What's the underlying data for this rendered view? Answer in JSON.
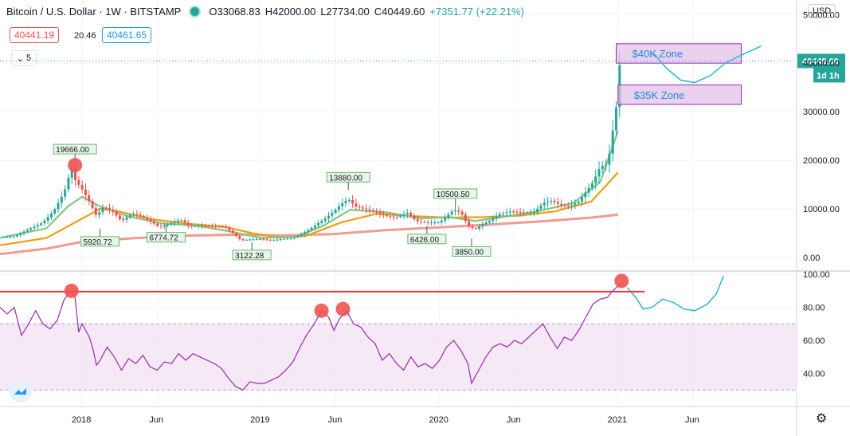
{
  "header": {
    "symbol": "Bitcoin / U.S. Dollar · 1W · BITSTAMP",
    "open": "O33068.83",
    "high": "H42000.00",
    "low": "L27734.00",
    "close": "C40449.60",
    "change": "+7351.77 (+22.21%)",
    "bid": "40441.19",
    "spread": "20.46",
    "ask": "40461.65",
    "indicator_count": "5",
    "currency": "USD"
  },
  "colors": {
    "up": "#26a69a",
    "down": "#ef5350",
    "ema_fast": "#81c784",
    "ema_mid": "#f39c12",
    "ma_slow": "#ef8a80",
    "rsi": "#9c27b0",
    "zone_fill": "#e1bee7",
    "zone_border": "#9c27b0",
    "projection": "#29b6d6",
    "rsi_threshold": "#e53935"
  },
  "chart_data": [
    {
      "type": "line",
      "title": "",
      "series_note": "price panel",
      "y_ticks": [
        "50000.00",
        "40000.00",
        "30000.00",
        "20000.00",
        "10000.00",
        "0.00"
      ],
      "ylim": [
        -2800,
        53000
      ],
      "x_ticks": [
        {
          "label": "2018",
          "x": 2018.0
        },
        {
          "label": "Jun",
          "x": 2018.42
        },
        {
          "label": "2019",
          "x": 2019.0
        },
        {
          "label": "Jun",
          "x": 2019.42
        },
        {
          "label": "2020",
          "x": 2020.0
        },
        {
          "label": "Jun",
          "x": 2020.42
        },
        {
          "label": "2021",
          "x": 2021.0
        },
        {
          "label": "Jun",
          "x": 2021.42
        }
      ],
      "xlim": [
        2017.54,
        2022.0
      ],
      "price_path": [
        [
          2017.54,
          4200
        ],
        [
          2017.62,
          4300
        ],
        [
          2017.7,
          5800
        ],
        [
          2017.78,
          7200
        ],
        [
          2017.84,
          9500
        ],
        [
          2017.9,
          13500
        ],
        [
          2017.94,
          18500
        ],
        [
          2017.96,
          16000
        ],
        [
          2018.0,
          14000
        ],
        [
          2018.04,
          11500
        ],
        [
          2018.08,
          8500
        ],
        [
          2018.12,
          10500
        ],
        [
          2018.17,
          9500
        ],
        [
          2018.22,
          7500
        ],
        [
          2018.28,
          9000
        ],
        [
          2018.33,
          8500
        ],
        [
          2018.38,
          7500
        ],
        [
          2018.43,
          6300
        ],
        [
          2018.48,
          6800
        ],
        [
          2018.55,
          7800
        ],
        [
          2018.6,
          6400
        ],
        [
          2018.67,
          6500
        ],
        [
          2018.74,
          6400
        ],
        [
          2018.8,
          6300
        ],
        [
          2018.85,
          4800
        ],
        [
          2018.89,
          3500
        ],
        [
          2018.94,
          3700
        ],
        [
          2019.0,
          3800
        ],
        [
          2019.06,
          3500
        ],
        [
          2019.12,
          3800
        ],
        [
          2019.18,
          4000
        ],
        [
          2019.24,
          5000
        ],
        [
          2019.3,
          6500
        ],
        [
          2019.36,
          8000
        ],
        [
          2019.41,
          9500
        ],
        [
          2019.45,
          11000
        ],
        [
          2019.49,
          12000
        ],
        [
          2019.53,
          10500
        ],
        [
          2019.58,
          10000
        ],
        [
          2019.63,
          9500
        ],
        [
          2019.7,
          8500
        ],
        [
          2019.76,
          8300
        ],
        [
          2019.82,
          9200
        ],
        [
          2019.87,
          7500
        ],
        [
          2019.93,
          7200
        ],
        [
          2020.0,
          7200
        ],
        [
          2020.04,
          8500
        ],
        [
          2020.08,
          9800
        ],
        [
          2020.12,
          9300
        ],
        [
          2020.16,
          6500
        ],
        [
          2020.2,
          5800
        ],
        [
          2020.24,
          6800
        ],
        [
          2020.28,
          7500
        ],
        [
          2020.33,
          8800
        ],
        [
          2020.4,
          9500
        ],
        [
          2020.47,
          9200
        ],
        [
          2020.53,
          9300
        ],
        [
          2020.58,
          11200
        ],
        [
          2020.63,
          11700
        ],
        [
          2020.68,
          10700
        ],
        [
          2020.73,
          10600
        ],
        [
          2020.78,
          11500
        ],
        [
          2020.82,
          13500
        ],
        [
          2020.86,
          15500
        ],
        [
          2020.9,
          18700
        ],
        [
          2020.94,
          19200
        ],
        [
          2020.96,
          23000
        ],
        [
          2020.98,
          29000
        ],
        [
          2021.0,
          33000
        ],
        [
          2021.01,
          40449
        ]
      ],
      "ema_fast_path": [
        [
          2017.54,
          4000
        ],
        [
          2017.8,
          6000
        ],
        [
          2017.92,
          10500
        ],
        [
          2018.0,
          12500
        ],
        [
          2018.1,
          10500
        ],
        [
          2018.25,
          8500
        ],
        [
          2018.45,
          7000
        ],
        [
          2018.65,
          6500
        ],
        [
          2018.85,
          5200
        ],
        [
          2019.0,
          4000
        ],
        [
          2019.2,
          4300
        ],
        [
          2019.35,
          6500
        ],
        [
          2019.5,
          9800
        ],
        [
          2019.7,
          9300
        ],
        [
          2019.9,
          8000
        ],
        [
          2020.05,
          8300
        ],
        [
          2020.2,
          7500
        ],
        [
          2020.35,
          8300
        ],
        [
          2020.55,
          9500
        ],
        [
          2020.75,
          11200
        ],
        [
          2020.9,
          15500
        ],
        [
          2021.0,
          26000
        ]
      ],
      "ema_mid_path": [
        [
          2017.54,
          2500
        ],
        [
          2017.8,
          4000
        ],
        [
          2017.95,
          7000
        ],
        [
          2018.1,
          10000
        ],
        [
          2018.2,
          9500
        ],
        [
          2018.4,
          7800
        ],
        [
          2018.6,
          6900
        ],
        [
          2018.8,
          6300
        ],
        [
          2018.95,
          5000
        ],
        [
          2019.1,
          4100
        ],
        [
          2019.25,
          4400
        ],
        [
          2019.45,
          7200
        ],
        [
          2019.65,
          9000
        ],
        [
          2019.85,
          8500
        ],
        [
          2020.05,
          8200
        ],
        [
          2020.25,
          8300
        ],
        [
          2020.45,
          8600
        ],
        [
          2020.65,
          9500
        ],
        [
          2020.85,
          11500
        ],
        [
          2021.0,
          17500
        ]
      ],
      "ma_slow_path": [
        [
          2017.54,
          700
        ],
        [
          2017.8,
          1800
        ],
        [
          2018.0,
          3200
        ],
        [
          2018.3,
          4000
        ],
        [
          2018.6,
          4500
        ],
        [
          2018.9,
          4700
        ],
        [
          2019.1,
          4500
        ],
        [
          2019.4,
          4800
        ],
        [
          2019.7,
          5600
        ],
        [
          2020.0,
          6200
        ],
        [
          2020.3,
          6800
        ],
        [
          2020.6,
          7500
        ],
        [
          2020.85,
          8200
        ],
        [
          2021.0,
          8800
        ]
      ],
      "zones": [
        {
          "label": "$40K Zone",
          "x0": 2020.99,
          "x1": 2021.69,
          "y0": 40000,
          "y1": 44000
        },
        {
          "label": "$35K Zone",
          "x0": 2021.0,
          "x1": 2021.69,
          "y0": 31500,
          "y1": 35500
        }
      ],
      "projection_path": [
        [
          2021.2,
          42000
        ],
        [
          2021.27,
          39000
        ],
        [
          2021.35,
          36500
        ],
        [
          2021.43,
          36000
        ],
        [
          2021.52,
          37500
        ],
        [
          2021.6,
          40000
        ],
        [
          2021.7,
          41800
        ],
        [
          2021.8,
          43500
        ]
      ],
      "current_price": {
        "label": "40449.60",
        "value": 40449.6,
        "timer": "1d 1h"
      },
      "callouts": [
        {
          "label": "19666.00",
          "x": 2017.96,
          "y": 19666,
          "kind": "high"
        },
        {
          "label": "5920.72",
          "x": 2018.1,
          "y": 5920,
          "kind": "low"
        },
        {
          "label": "6774.72",
          "x": 2018.47,
          "y": 6774,
          "kind": "low"
        },
        {
          "label": "3122.28",
          "x": 2018.95,
          "y": 3122,
          "kind": "low"
        },
        {
          "label": "13880.00",
          "x": 2019.49,
          "y": 13880,
          "kind": "high"
        },
        {
          "label": "6426.00",
          "x": 2019.93,
          "y": 6426,
          "kind": "low"
        },
        {
          "label": "10500.50",
          "x": 2020.09,
          "y": 10500,
          "kind": "high"
        },
        {
          "label": "3850.00",
          "x": 2020.18,
          "y": 3850,
          "kind": "low"
        }
      ],
      "high_markers": [
        {
          "x": 2017.96,
          "y": 19000
        }
      ]
    },
    {
      "type": "line",
      "title": "",
      "series_note": "RSI panel",
      "y_ticks": [
        "100.00",
        "80.00",
        "60.00",
        "40.00"
      ],
      "ylim": [
        20,
        102
      ],
      "band": [
        30,
        70
      ],
      "threshold": 89.5,
      "rsi_path": [
        [
          2017.54,
          80
        ],
        [
          2017.58,
          76
        ],
        [
          2017.62,
          80
        ],
        [
          2017.66,
          63
        ],
        [
          2017.7,
          70
        ],
        [
          2017.74,
          78
        ],
        [
          2017.78,
          70
        ],
        [
          2017.82,
          67
        ],
        [
          2017.86,
          72
        ],
        [
          2017.9,
          85
        ],
        [
          2017.94,
          90
        ],
        [
          2017.96,
          86
        ],
        [
          2017.98,
          65
        ],
        [
          2018.0,
          70
        ],
        [
          2018.02,
          66
        ],
        [
          2018.04,
          62
        ],
        [
          2018.06,
          55
        ],
        [
          2018.08,
          45
        ],
        [
          2018.1,
          48
        ],
        [
          2018.14,
          56
        ],
        [
          2018.18,
          50
        ],
        [
          2018.22,
          42
        ],
        [
          2018.26,
          49
        ],
        [
          2018.3,
          46
        ],
        [
          2018.34,
          51
        ],
        [
          2018.38,
          44
        ],
        [
          2018.42,
          42
        ],
        [
          2018.46,
          47
        ],
        [
          2018.5,
          46
        ],
        [
          2018.54,
          52
        ],
        [
          2018.58,
          48
        ],
        [
          2018.62,
          52
        ],
        [
          2018.66,
          50
        ],
        [
          2018.7,
          48
        ],
        [
          2018.74,
          46
        ],
        [
          2018.78,
          43
        ],
        [
          2018.82,
          37
        ],
        [
          2018.86,
          32
        ],
        [
          2018.9,
          30
        ],
        [
          2018.94,
          35
        ],
        [
          2018.98,
          34
        ],
        [
          2019.02,
          34
        ],
        [
          2019.06,
          36
        ],
        [
          2019.1,
          38
        ],
        [
          2019.14,
          42
        ],
        [
          2019.18,
          47
        ],
        [
          2019.22,
          56
        ],
        [
          2019.26,
          64
        ],
        [
          2019.3,
          70
        ],
        [
          2019.34,
          78
        ],
        [
          2019.38,
          74
        ],
        [
          2019.41,
          66
        ],
        [
          2019.44,
          73
        ],
        [
          2019.48,
          78
        ],
        [
          2019.52,
          70
        ],
        [
          2019.56,
          68
        ],
        [
          2019.6,
          62
        ],
        [
          2019.64,
          58
        ],
        [
          2019.68,
          48
        ],
        [
          2019.72,
          52
        ],
        [
          2019.76,
          46
        ],
        [
          2019.8,
          42
        ],
        [
          2019.84,
          50
        ],
        [
          2019.88,
          44
        ],
        [
          2019.92,
          46
        ],
        [
          2019.96,
          43
        ],
        [
          2020.0,
          48
        ],
        [
          2020.04,
          56
        ],
        [
          2020.08,
          60
        ],
        [
          2020.12,
          54
        ],
        [
          2020.16,
          46
        ],
        [
          2020.18,
          34
        ],
        [
          2020.22,
          42
        ],
        [
          2020.26,
          50
        ],
        [
          2020.3,
          56
        ],
        [
          2020.34,
          58
        ],
        [
          2020.38,
          56
        ],
        [
          2020.42,
          60
        ],
        [
          2020.46,
          58
        ],
        [
          2020.5,
          62
        ],
        [
          2020.54,
          66
        ],
        [
          2020.58,
          70
        ],
        [
          2020.62,
          62
        ],
        [
          2020.66,
          55
        ],
        [
          2020.7,
          62
        ],
        [
          2020.74,
          60
        ],
        [
          2020.78,
          66
        ],
        [
          2020.82,
          74
        ],
        [
          2020.86,
          82
        ],
        [
          2020.9,
          85
        ],
        [
          2020.94,
          86
        ],
        [
          2020.97,
          90
        ],
        [
          2021.0,
          93
        ],
        [
          2021.02,
          95
        ]
      ],
      "projection_path": [
        [
          2021.05,
          92
        ],
        [
          2021.1,
          86
        ],
        [
          2021.14,
          79
        ],
        [
          2021.19,
          80
        ],
        [
          2021.25,
          85
        ],
        [
          2021.31,
          83
        ],
        [
          2021.37,
          79
        ],
        [
          2021.43,
          78
        ],
        [
          2021.5,
          82
        ],
        [
          2021.55,
          88
        ],
        [
          2021.58,
          96
        ],
        [
          2021.59,
          99
        ]
      ],
      "markers": [
        {
          "x": 2017.94,
          "y": 90
        },
        {
          "x": 2019.34,
          "y": 78
        },
        {
          "x": 2019.46,
          "y": 79
        },
        {
          "x": 2021.02,
          "y": 96
        }
      ]
    }
  ]
}
